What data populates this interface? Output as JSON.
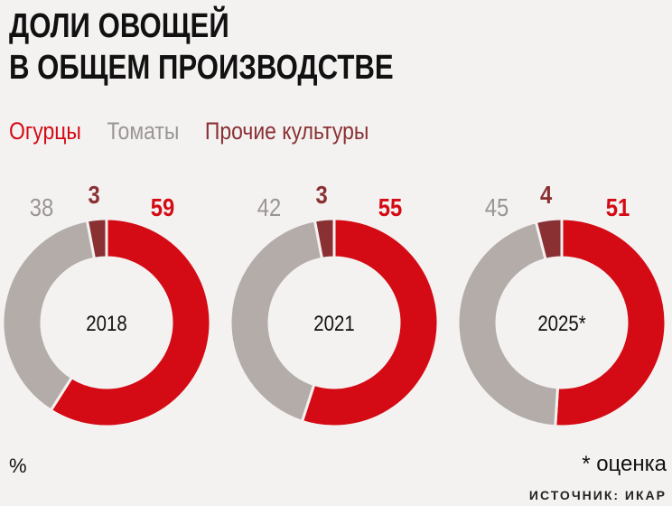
{
  "title_lines": [
    "ДОЛИ ОВОЩЕЙ",
    "В ОБЩЕМ ПРОИЗВОДСТВЕ"
  ],
  "unit": "%",
  "note": "* оценка",
  "source": "ИСТОЧНИК: ИКАР",
  "chart_data": {
    "type": "pie",
    "subtype": "donut",
    "series": [
      {
        "name": "Огурцы",
        "color": "#d40a14",
        "label_color": "#d40a14"
      },
      {
        "name": "Томаты",
        "color": "#b3aca9",
        "label_color": "#9a9593"
      },
      {
        "name": "Прочие культуры",
        "color": "#8a3033",
        "label_color": "#8a3033"
      }
    ],
    "legend_position": "top-left",
    "charts": [
      {
        "label": "2018",
        "values": [
          59,
          38,
          3
        ]
      },
      {
        "label": "2021",
        "values": [
          55,
          42,
          3
        ]
      },
      {
        "label": "2025*",
        "values": [
          51,
          45,
          4
        ]
      }
    ]
  }
}
